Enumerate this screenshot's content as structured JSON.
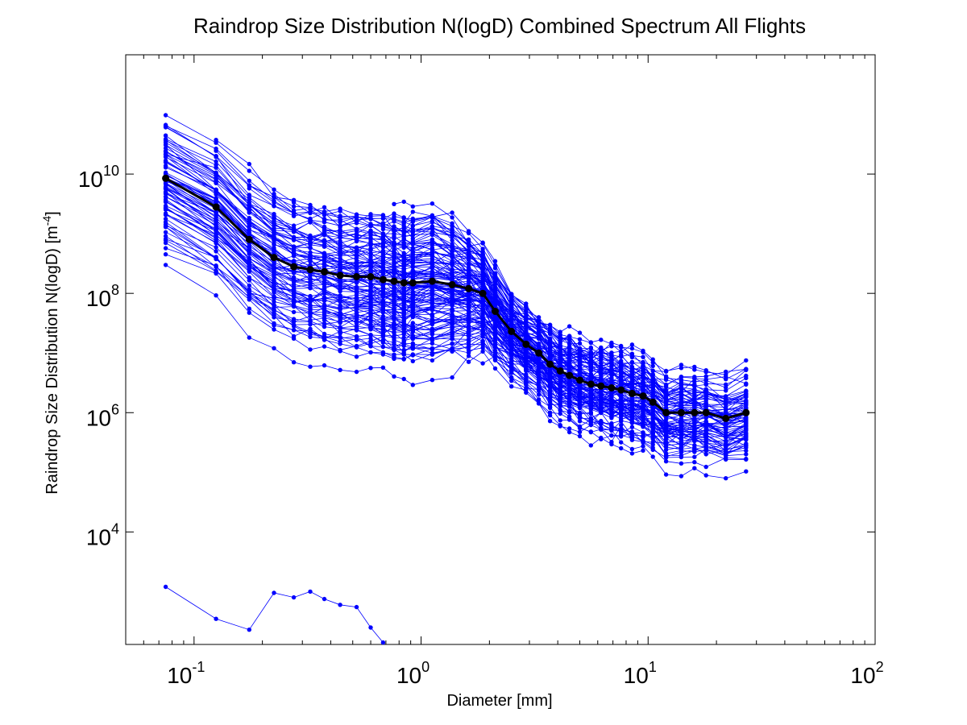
{
  "chart_data": {
    "type": "line",
    "title": "Raindrop Size Distribution N(logD) Combined Spectrum All Flights",
    "xlabel": "Diameter [mm]",
    "ylabel_main": "Raindrop Size Distribution N(logD) [m",
    "ylabel_exponent": "-4",
    "ylabel_close": "]",
    "x_scale": "log",
    "y_scale": "log",
    "xlim": [
      0.05,
      100
    ],
    "ylim": [
      130,
      1000000000000
    ],
    "grid": false,
    "x_tick_labels": [
      {
        "base": "10",
        "exp": "-1"
      },
      {
        "base": "10",
        "exp": "0"
      },
      {
        "base": "10",
        "exp": "1"
      },
      {
        "base": "10",
        "exp": "2"
      }
    ],
    "y_tick_labels": [
      {
        "base": "10",
        "exp": "4"
      },
      {
        "base": "10",
        "exp": "6"
      },
      {
        "base": "10",
        "exp": "8"
      },
      {
        "base": "10",
        "exp": "10"
      }
    ],
    "colors": {
      "individual_spectra": "#0000ff",
      "combined_spectrum": "#000000"
    },
    "bin_diameters_mm": [
      0.075,
      0.125,
      0.175,
      0.225,
      0.275,
      0.325,
      0.375,
      0.44,
      0.52,
      0.6,
      0.68,
      0.76,
      0.84,
      0.92,
      1.12,
      1.37,
      1.62,
      1.87,
      2.12,
      2.5,
      2.9,
      3.3,
      3.7,
      4.1,
      4.5,
      5.0,
      5.6,
      6.2,
      6.9,
      7.6,
      8.5,
      9.5,
      10.5,
      12.0,
      14.0,
      16.0,
      18.0,
      22.0,
      27.0
    ],
    "combined_spectrum": {
      "x": [
        0.075,
        0.125,
        0.175,
        0.225,
        0.275,
        0.325,
        0.375,
        0.44,
        0.52,
        0.6,
        0.68,
        0.76,
        0.84,
        0.92,
        1.12,
        1.37,
        1.62,
        1.87,
        2.12,
        2.5,
        2.9,
        3.3,
        3.7,
        4.1,
        4.5,
        5.0,
        5.6,
        6.2,
        6.9,
        7.6,
        8.5,
        9.5,
        10.5,
        12.0,
        14.0,
        16.0,
        18.0,
        22.0,
        27.0
      ],
      "y": [
        8500000000,
        2800000000,
        800000000,
        400000000,
        280000000,
        250000000,
        230000000,
        200000000,
        190000000,
        190000000,
        170000000,
        160000000,
        150000000,
        150000000,
        160000000,
        140000000,
        120000000,
        100000000,
        50000000,
        23000000,
        14000000,
        10000000,
        6500000,
        5000000,
        4200000,
        3500000,
        3000000,
        2800000,
        2600000,
        2400000,
        2100000,
        1900000,
        1500000,
        1000000,
        1000000,
        1000000,
        1000000,
        800000,
        1000000
      ]
    },
    "lowest_spectrum": {
      "x": [
        0.075,
        0.125,
        0.175,
        0.225,
        0.275,
        0.325,
        0.375,
        0.44,
        0.52,
        0.6,
        0.68
      ],
      "y": [
        1200,
        350,
        230,
        950,
        800,
        1000,
        750,
        600,
        550,
        250,
        140
      ]
    }
  }
}
